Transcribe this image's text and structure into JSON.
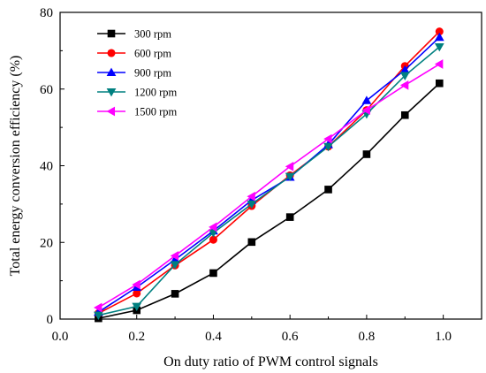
{
  "chart_data": {
    "type": "line",
    "title": "",
    "xlabel": "On duty ratio of PWM control signals",
    "ylabel": "Total energy conversion efficiency (%)",
    "xlim": [
      0.0,
      1.1
    ],
    "ylim": [
      0,
      80
    ],
    "xticks": [
      0.0,
      0.2,
      0.4,
      0.6,
      0.8,
      1.0
    ],
    "yticks": [
      0,
      20,
      40,
      60,
      80
    ],
    "xtick_labels": [
      "0.0",
      "0.2",
      "0.4",
      "0.6",
      "0.8",
      "1.0"
    ],
    "ytick_labels": [
      "0",
      "20",
      "40",
      "60",
      "80"
    ],
    "grid": false,
    "legend_position": "top-left",
    "series": [
      {
        "name": "300 rpm",
        "color": "#000000",
        "marker": "square",
        "x": [
          0.1,
          0.2,
          0.3,
          0.4,
          0.5,
          0.6,
          0.7,
          0.8,
          0.9,
          0.99
        ],
        "y": [
          0.2,
          2.3,
          6.6,
          12.0,
          20.1,
          26.6,
          33.8,
          43.0,
          53.2,
          61.5
        ]
      },
      {
        "name": "600 rpm",
        "color": "#ff0000",
        "marker": "circle",
        "x": [
          0.1,
          0.2,
          0.3,
          0.4,
          0.5,
          0.6,
          0.7,
          0.8,
          0.9,
          0.99
        ],
        "y": [
          1.5,
          6.7,
          14.0,
          20.7,
          29.5,
          37.5,
          45.0,
          54.5,
          66.0,
          75.0
        ]
      },
      {
        "name": "900 rpm",
        "color": "#0000ff",
        "marker": "triangle-up",
        "x": [
          0.1,
          0.2,
          0.3,
          0.4,
          0.5,
          0.6,
          0.7,
          0.8,
          0.9,
          0.99
        ],
        "y": [
          1.8,
          8.3,
          15.5,
          23.0,
          31.0,
          37.0,
          45.5,
          57.0,
          65.0,
          73.5
        ]
      },
      {
        "name": "1200 rpm",
        "color": "#008080",
        "marker": "triangle-down",
        "x": [
          0.1,
          0.2,
          0.3,
          0.4,
          0.5,
          0.6,
          0.7,
          0.8,
          0.9,
          0.99
        ],
        "y": [
          1.0,
          3.3,
          14.2,
          22.5,
          30.0,
          37.2,
          45.0,
          53.5,
          63.5,
          71.0
        ]
      },
      {
        "name": "1500 rpm",
        "color": "#ff00ff",
        "marker": "triangle-left",
        "x": [
          0.1,
          0.2,
          0.3,
          0.4,
          0.5,
          0.6,
          0.7,
          0.8,
          0.9,
          0.99
        ],
        "y": [
          3.0,
          9.0,
          16.5,
          24.0,
          32.0,
          39.8,
          47.0,
          54.5,
          61.0,
          66.5
        ]
      }
    ]
  }
}
